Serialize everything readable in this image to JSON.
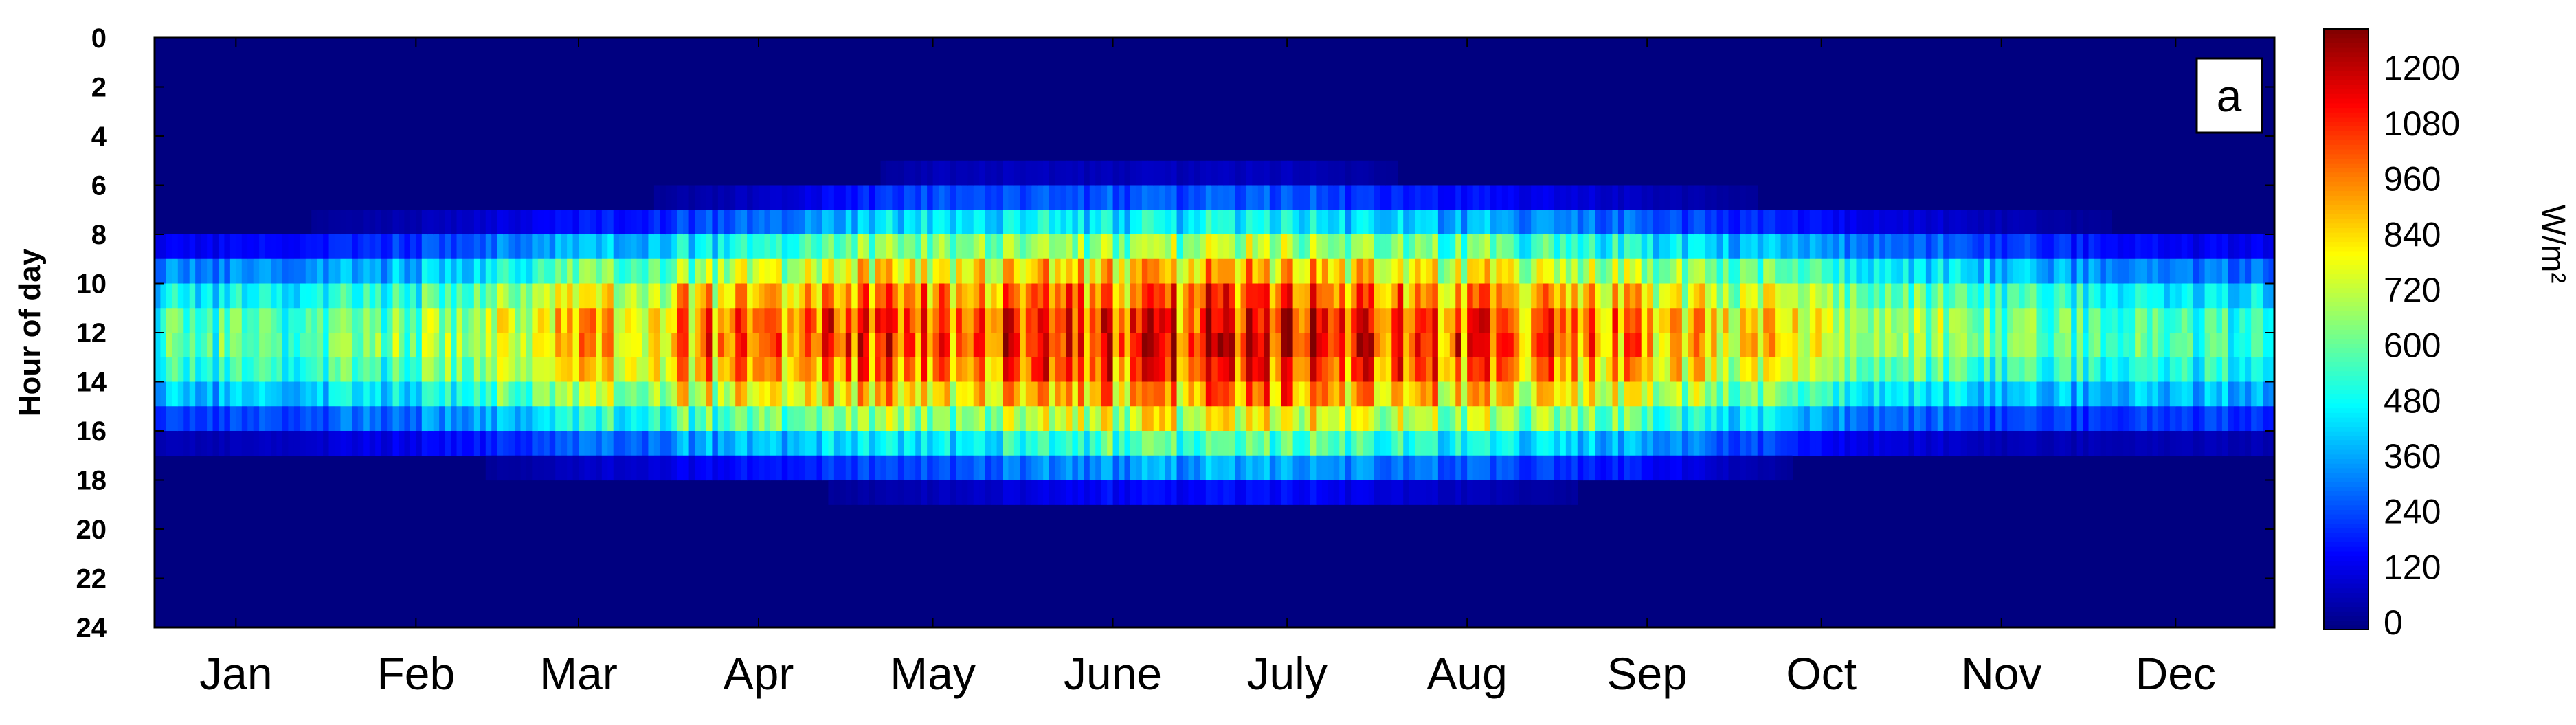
{
  "chart_data": {
    "type": "heatmap",
    "title": "",
    "panel_label": "a",
    "xlabel": "",
    "ylabel": "Hour of day",
    "x_categories": [
      "Jan",
      "Feb",
      "Mar",
      "Apr",
      "May",
      "June",
      "July",
      "Aug",
      "Sep",
      "Oct",
      "Nov",
      "Dec"
    ],
    "x_day_of_year": [
      15,
      46,
      74,
      105,
      135,
      166,
      196,
      227,
      258,
      288,
      319,
      349
    ],
    "x_range_days": [
      1,
      365
    ],
    "y_ticks": [
      0,
      2,
      4,
      6,
      8,
      10,
      12,
      14,
      16,
      18,
      20,
      22,
      24
    ],
    "ylim": [
      0,
      24
    ],
    "y_reversed": true,
    "colorbar": {
      "label": "W/m²",
      "ticks": [
        0,
        120,
        240,
        360,
        480,
        600,
        720,
        840,
        960,
        1080,
        1200
      ],
      "range": [
        0,
        1300
      ],
      "colormap": "jet"
    },
    "monthly_profile": {
      "month": [
        "Jan",
        "Feb",
        "Mar",
        "Apr",
        "May",
        "June",
        "July",
        "Aug",
        "Sep",
        "Oct",
        "Nov",
        "Dec"
      ],
      "sunrise_hour": [
        8,
        7.5,
        7,
        6.5,
        5.5,
        5.5,
        5.5,
        6,
        6.5,
        7,
        7.5,
        8
      ],
      "sunset_hour": [
        16.5,
        17,
        17.5,
        18,
        18.5,
        19,
        19,
        18.5,
        18,
        17,
        16.5,
        16.5
      ],
      "peak_irradiance": [
        650,
        720,
        950,
        1100,
        1150,
        1180,
        1200,
        1150,
        1050,
        850,
        680,
        620
      ]
    }
  }
}
